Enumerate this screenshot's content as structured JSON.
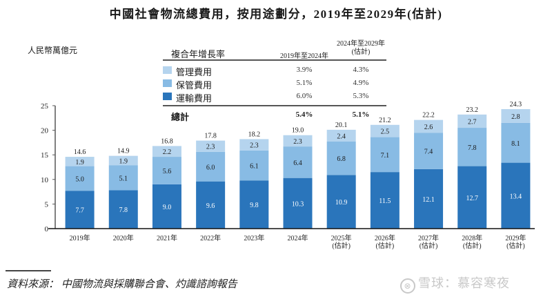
{
  "title": "中國社會物流總費用，按用途劃分，2019年至2029年(估計)",
  "unit_label": "人民幣萬億元",
  "cagr_table": {
    "header_label": "複合年增長率",
    "col1_header": "2019年至2024年",
    "col2_header_line1": "2024年至2029年",
    "col2_header_line2": "(估計)",
    "rows": [
      {
        "label": "管理費用",
        "color": "#b5d4ee",
        "v1": "3.9%",
        "v2": "4.3%"
      },
      {
        "label": "保管費用",
        "color": "#88bbe4",
        "v1": "5.1%",
        "v2": "4.9%"
      },
      {
        "label": "運輸費用",
        "color": "#2a75bb",
        "v1": "6.0%",
        "v2": "5.3%"
      }
    ],
    "total_label": "總計",
    "total_v1": "5.4%",
    "total_v2": "5.1%"
  },
  "chart_data": {
    "type": "bar",
    "stacked": true,
    "title": "中國社會物流總費用，按用途劃分，2019年至2029年(估計)",
    "ylabel": "人民幣萬億元",
    "xlabel": "",
    "ylim": [
      0,
      25
    ],
    "yticks": [
      0,
      5,
      10,
      15,
      20,
      25
    ],
    "grid": false,
    "categories": [
      [
        "2019年"
      ],
      [
        "2020年"
      ],
      [
        "2021年"
      ],
      [
        "2022年"
      ],
      [
        "2023年"
      ],
      [
        "2024年"
      ],
      [
        "2025年",
        "(估計)"
      ],
      [
        "2026年",
        "(估計)"
      ],
      [
        "2027年",
        "(估計)"
      ],
      [
        "2028年",
        "(估計)"
      ],
      [
        "2029年",
        "(估計)"
      ]
    ],
    "series": [
      {
        "name": "運輸費用",
        "color": "#2a75bb",
        "label_color": "#ffffff",
        "values": [
          7.7,
          7.8,
          9.0,
          9.6,
          9.8,
          10.3,
          10.9,
          11.5,
          12.1,
          12.7,
          13.4
        ]
      },
      {
        "name": "保管費用",
        "color": "#88bbe4",
        "label_color": "#1a1a1a",
        "values": [
          5.0,
          5.1,
          5.6,
          6.0,
          6.1,
          6.4,
          6.8,
          7.1,
          7.4,
          7.8,
          8.1
        ]
      },
      {
        "name": "管理費用",
        "color": "#b5d4ee",
        "label_color": "#1a1a1a",
        "values": [
          1.9,
          1.9,
          2.2,
          2.3,
          2.3,
          2.3,
          2.4,
          2.5,
          2.6,
          2.7,
          2.8
        ]
      }
    ],
    "totals": [
      14.6,
      14.9,
      16.8,
      17.8,
      18.2,
      19.0,
      20.1,
      21.2,
      22.2,
      23.2,
      24.3
    ]
  },
  "source": "資料來源： 中國物流與採購聯合會、灼識諮詢報告",
  "watermark": "雪球：慕容寒夜"
}
